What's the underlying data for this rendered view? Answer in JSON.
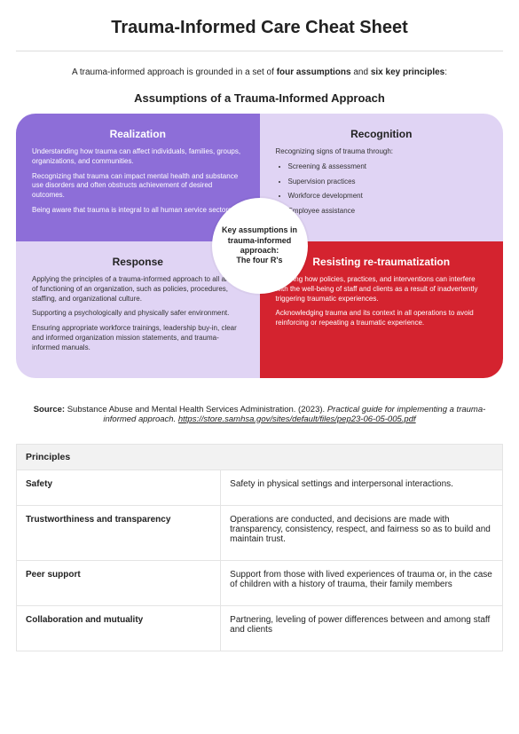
{
  "title": "Trauma-Informed Care Cheat Sheet",
  "intro_pre": "A trauma-informed approach is grounded in a set of ",
  "intro_b1": "four assumptions",
  "intro_mid": " and ",
  "intro_b2": "six key principles",
  "intro_post": ":",
  "subheading": "Assumptions of a Trauma-Informed Approach",
  "circle_title": "Key assumptions in trauma-informed approach:",
  "circle_sub": "The four R's",
  "quads": {
    "tl": {
      "title": "Realization",
      "p1": "Understanding how trauma can affect individuals, families, groups, organizations, and communities.",
      "p2": "Recognizing that trauma can impact mental health and substance use disorders and often obstructs achievement of desired outcomes.",
      "p3": "Being aware that trauma is integral to all human service sectors."
    },
    "tr": {
      "title": "Recognition",
      "lead": "Recognizing signs of trauma through:",
      "items": {
        "0": "Screening & assessment",
        "1": "Supervision practices",
        "2": "Workforce development",
        "3": "Employee assistance"
      }
    },
    "bl": {
      "title": "Response",
      "p1": "Applying the principles of a trauma-informed approach to all areas of functioning of an organization, such as policies, procedures, staffing, and organizational culture.",
      "p2": "Supporting a psychologically and physically safer environment.",
      "p3": "Ensuring appropriate workforce trainings, leadership buy-in, clear and informed organization mission statements, and trauma-informed manuals."
    },
    "br": {
      "title": "Resisting re-traumatization",
      "p1": "Knowing how policies, practices, and interventions can interfere with the well-being of staff and clients as a result of inadvertently triggering traumatic experiences.",
      "p2": "Acknowledging trauma and its context in all operations to avoid reinforcing or repeating a traumatic experience."
    }
  },
  "source": {
    "label": "Source:",
    "text_pre": " Substance Abuse and Mental Health Services Administration. (2023). ",
    "title_italic": "Practical guide for implementing a trauma-informed approach.",
    "url": "https://store.samhsa.gov/sites/default/files/pep23-06-05-005.pdf"
  },
  "table": {
    "header": "Principles",
    "rows": {
      "0": {
        "name": "Safety",
        "desc": "Safety in physical settings and interpersonal interactions."
      },
      "1": {
        "name": "Trustworthiness and transparency",
        "desc": "Operations are conducted, and decisions are made with transparency, consistency, respect, and fairness so as to build and maintain trust."
      },
      "2": {
        "name": "Peer support",
        "desc": "Support from those with lived experiences of trauma or, in the case of children with a history of trauma, their family members"
      },
      "3": {
        "name": "Collaboration and mutuality",
        "desc": "Partnering, leveling of power differences between and among staff and clients"
      }
    }
  },
  "colors": {
    "purple": "#8d6ed8",
    "lilac": "#e0d4f4",
    "red": "#d4232f",
    "table_header_bg": "#f2f2f2",
    "border": "#e4e4e4"
  }
}
